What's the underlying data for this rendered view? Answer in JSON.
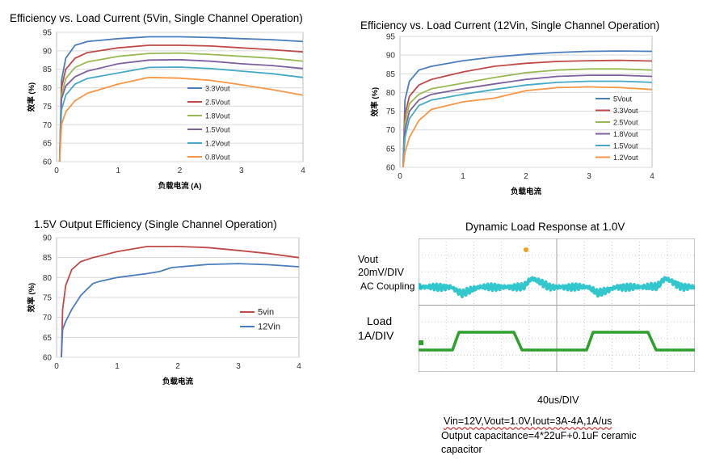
{
  "colors": {
    "blue": "#4a7ebb",
    "red": "#be4b48",
    "green": "#98b954",
    "purple": "#7d60a0",
    "cyan": "#46aac5",
    "orange": "#f79646",
    "trace_cyan": "#1cc0c8",
    "trace_green": "#2ea02e"
  },
  "chart_data": [
    {
      "type": "line",
      "title": "Efficiency vs. Load Current (5Vin, Single Channel Operation)",
      "xlabel": "负载电流 (A)",
      "ylabel": "效率 (%)",
      "xlim": [
        0,
        4
      ],
      "ylim": [
        60,
        95
      ],
      "xticks": [
        "0",
        "1",
        "2",
        "3",
        "4"
      ],
      "yticks": [
        "60",
        "65",
        "70",
        "75",
        "80",
        "85",
        "90",
        "95"
      ],
      "grid": true,
      "legend": "center-right",
      "series": [
        {
          "name": "3.3Vout",
          "color": "#4a7ebb",
          "x": [
            0.05,
            0.08,
            0.15,
            0.3,
            0.5,
            1,
            1.5,
            2,
            2.5,
            3,
            3.5,
            4
          ],
          "y": [
            60,
            82,
            88,
            91.5,
            92.5,
            93.3,
            93.8,
            93.8,
            93.6,
            93.3,
            93,
            92.5
          ]
        },
        {
          "name": "2.5Vout",
          "color": "#be4b48",
          "x": [
            0.05,
            0.08,
            0.15,
            0.3,
            0.5,
            1,
            1.5,
            2,
            2.5,
            3,
            3.5,
            4
          ],
          "y": [
            60,
            80,
            85,
            88,
            89.5,
            90.8,
            91.5,
            91.5,
            91.3,
            90.8,
            90.3,
            89.7
          ]
        },
        {
          "name": "1.8Vout",
          "color": "#98b954",
          "x": [
            0.05,
            0.08,
            0.15,
            0.3,
            0.5,
            1,
            1.5,
            2,
            2.5,
            3,
            3.5,
            4
          ],
          "y": [
            60,
            78,
            82.5,
            85.5,
            87,
            88.5,
            89.3,
            89.4,
            89,
            88.5,
            88,
            87.2
          ]
        },
        {
          "name": "1.5Vout",
          "color": "#7d60a0",
          "x": [
            0.05,
            0.08,
            0.15,
            0.3,
            0.5,
            1,
            1.5,
            2,
            2.5,
            3,
            3.5,
            4
          ],
          "y": [
            60,
            77,
            80.5,
            83,
            84.5,
            86.5,
            87.5,
            87.6,
            87.2,
            86.5,
            86,
            85.2
          ]
        },
        {
          "name": "1.2Vout",
          "color": "#46aac5",
          "x": [
            0.05,
            0.08,
            0.15,
            0.3,
            0.5,
            1,
            1.5,
            2,
            2.5,
            3,
            3.5,
            4
          ],
          "y": [
            60,
            74,
            78,
            81,
            82.5,
            84,
            85.5,
            85.6,
            85.2,
            84.5,
            83.8,
            82.8
          ]
        },
        {
          "name": "0.8Vout",
          "color": "#f79646",
          "x": [
            0.05,
            0.08,
            0.15,
            0.3,
            0.5,
            1,
            1.5,
            2,
            2.5,
            3,
            3.5,
            4
          ],
          "y": [
            60,
            70,
            73.5,
            76.5,
            78.5,
            81,
            82.8,
            82.6,
            82,
            80.8,
            79.5,
            78
          ]
        }
      ]
    },
    {
      "type": "line",
      "title": "Efficiency vs. Load Current (12Vin, Single Channel Operation)",
      "xlabel": "负载电流",
      "ylabel": "效率 (%)",
      "xlim": [
        0,
        4
      ],
      "ylim": [
        60,
        95
      ],
      "xticks": [
        "0",
        "1",
        "2",
        "3",
        "4"
      ],
      "yticks": [
        "60",
        "65",
        "70",
        "75",
        "80",
        "85",
        "90",
        "95"
      ],
      "grid": true,
      "legend": "center-right",
      "series": [
        {
          "name": "5Vout",
          "color": "#4a7ebb",
          "x": [
            0.05,
            0.08,
            0.15,
            0.3,
            0.5,
            1,
            1.5,
            2,
            2.5,
            3,
            3.5,
            4
          ],
          "y": [
            60,
            78,
            83,
            86,
            87,
            88.5,
            89.5,
            90.2,
            90.7,
            91,
            91.1,
            91
          ]
        },
        {
          "name": "3.3Vout",
          "color": "#be4b48",
          "x": [
            0.05,
            0.08,
            0.15,
            0.3,
            0.5,
            1,
            1.5,
            2,
            2.5,
            3,
            3.5,
            4
          ],
          "y": [
            60,
            74,
            79,
            82,
            83.5,
            85.5,
            87,
            87.8,
            88.3,
            88.5,
            88.6,
            88.4
          ]
        },
        {
          "name": "2.5Vout",
          "color": "#98b954",
          "x": [
            0.05,
            0.08,
            0.15,
            0.3,
            0.5,
            1,
            1.5,
            2,
            2.5,
            3,
            3.5,
            4
          ],
          "y": [
            60,
            72,
            77,
            79.5,
            81,
            82.5,
            84,
            85.3,
            86,
            86.3,
            86.3,
            86
          ]
        },
        {
          "name": "1.8Vout",
          "color": "#7d60a0",
          "x": [
            0.05,
            0.08,
            0.15,
            0.3,
            0.5,
            1,
            1.5,
            2,
            2.5,
            3,
            3.5,
            4
          ],
          "y": [
            60,
            70,
            75,
            78,
            79.5,
            81,
            82.3,
            83.5,
            84.3,
            84.6,
            84.6,
            84.3
          ]
        },
        {
          "name": "1.5Vout",
          "color": "#46aac5",
          "x": [
            0.05,
            0.08,
            0.15,
            0.3,
            0.5,
            1,
            1.5,
            2,
            2.5,
            3,
            3.5,
            4
          ],
          "y": [
            60,
            68,
            73,
            76.5,
            78,
            79.5,
            80.8,
            82,
            82.7,
            83,
            83,
            82.7
          ]
        },
        {
          "name": "1.2Vout",
          "color": "#f79646",
          "x": [
            0.05,
            0.08,
            0.15,
            0.3,
            0.5,
            1,
            1.5,
            2,
            2.5,
            3,
            3.5,
            4
          ],
          "y": [
            60,
            64,
            68,
            72.5,
            75.5,
            77.5,
            78.5,
            80.5,
            81.3,
            81.5,
            81.3,
            80.8
          ]
        }
      ]
    },
    {
      "type": "line",
      "title": "1.5V Output Efficiency (Single Channel Operation)",
      "xlabel": "负载电流",
      "ylabel": "效率 (%)",
      "xlim": [
        0,
        4
      ],
      "ylim": [
        60,
        90
      ],
      "xticks": [
        "0",
        "1",
        "2",
        "3",
        "4"
      ],
      "yticks": [
        "60",
        "65",
        "70",
        "75",
        "80",
        "85",
        "90"
      ],
      "grid": true,
      "legend": "center-right",
      "series": [
        {
          "name": "5vin",
          "color": "#be4b48",
          "x": [
            0.08,
            0.1,
            0.15,
            0.25,
            0.4,
            0.6,
            1,
            1.5,
            2,
            2.5,
            3,
            3.5,
            4
          ],
          "y": [
            60,
            72,
            78,
            82,
            84,
            85,
            86.5,
            87.8,
            87.8,
            87.5,
            86.8,
            86,
            85
          ]
        },
        {
          "name": "12Vin",
          "color": "#4a7ebb",
          "x": [
            0.08,
            0.1,
            0.15,
            0.25,
            0.4,
            0.6,
            0.7,
            1,
            1.5,
            1.7,
            1.9,
            2.5,
            3,
            3.5,
            4
          ],
          "y": [
            60,
            67,
            69,
            72,
            75.5,
            78.5,
            79,
            80,
            81,
            81.5,
            82.5,
            83.3,
            83.5,
            83.2,
            82.7
          ]
        }
      ]
    }
  ],
  "scope": {
    "title": "Dynamic Load Response at 1.0V",
    "vout_label": "Vout",
    "vout_scale": "20mV/DIV",
    "coupling": "AC Coupling",
    "load_label": "Load",
    "load_scale": "1A/DIV",
    "time_scale": "40us/DIV",
    "conditions_line1": "Vin=12V,Vout=1.0V,Iout=3A-4A,1A/us",
    "conditions_line2": "Output capacitance=4*22uF+0.1uF ceramic",
    "conditions_line3": "capacitor"
  }
}
